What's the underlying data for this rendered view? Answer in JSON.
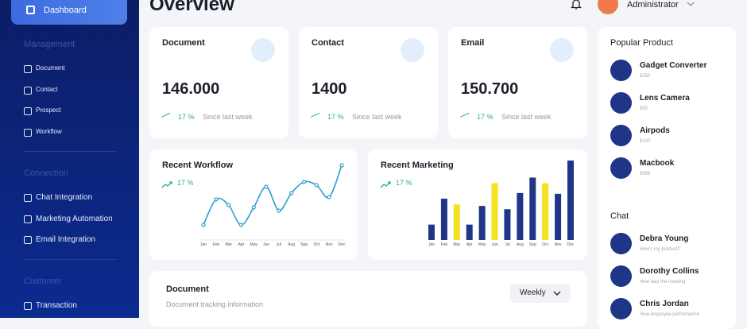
{
  "sidebar": {
    "active": "Dashboard",
    "sections": [
      {
        "title": "Management",
        "items": [
          "Document",
          "Contact",
          "Prospect",
          "Workflow"
        ]
      },
      {
        "title": "Connection",
        "items": [
          "Chat Integration",
          "Marketing Automation",
          "Email Integration"
        ]
      },
      {
        "title": "Customer",
        "items": [
          "Transaction"
        ]
      }
    ]
  },
  "header": {
    "title": "Overview",
    "user": "Administrator"
  },
  "stats": [
    {
      "label": "Document",
      "value": "146.000",
      "change": "17 %",
      "note": "Since last week"
    },
    {
      "label": "Contact",
      "value": "1400",
      "change": "17 %",
      "note": "Since last week"
    },
    {
      "label": "Email",
      "value": "150.700",
      "change": "17 %",
      "note": "Since last week"
    }
  ],
  "chart_data": [
    {
      "type": "line",
      "title": "Recent Workflow",
      "annotation": "17 %",
      "categories": [
        "Jan",
        "Feb",
        "Mar",
        "Apr",
        "May",
        "Jun",
        "Jul",
        "Aug",
        "Sep",
        "Oct",
        "Nov",
        "Dec"
      ],
      "values": [
        17,
        49,
        42,
        17,
        39,
        65,
        35,
        57,
        71,
        67,
        52,
        92
      ],
      "color": "#2a9fd0",
      "ylim": [
        0,
        100
      ]
    },
    {
      "type": "bar",
      "title": "Recent Marketing",
      "annotation": "17 %",
      "categories": [
        "Jan",
        "Feb",
        "Mar",
        "Apr",
        "May",
        "Jun",
        "Jul",
        "Aug",
        "Sep",
        "Oct",
        "Nov",
        "Dec"
      ],
      "values": [
        19,
        51,
        44,
        19,
        42,
        70,
        38,
        58,
        77,
        70,
        57,
        98
      ],
      "colors": [
        "#1f3587",
        "#1f3587",
        "#f2e21f",
        "#1f3587",
        "#1f3587",
        "#f2e21f",
        "#1f3587",
        "#1f3587",
        "#1f3587",
        "#f2e21f",
        "#1f3587",
        "#1f3587"
      ],
      "ylim": [
        0,
        100
      ]
    }
  ],
  "document": {
    "title": "Document",
    "subtitle": "Document tracking information",
    "filter": "Weekly"
  },
  "popular": {
    "title": "Popular Product",
    "items": [
      {
        "name": "Gadget Converter",
        "price": "$250"
      },
      {
        "name": "Lens Camera",
        "price": "$50"
      },
      {
        "name": "Airpods",
        "price": "$100"
      },
      {
        "name": "Macbook",
        "price": "$999"
      }
    ]
  },
  "chat": {
    "title": "Chat",
    "items": [
      {
        "name": "Debra Young",
        "message": "How's my product?"
      },
      {
        "name": "Dorothy Collins",
        "message": "How was the meeting"
      },
      {
        "name": "Chris Jordan",
        "message": "How employee performance"
      }
    ]
  }
}
